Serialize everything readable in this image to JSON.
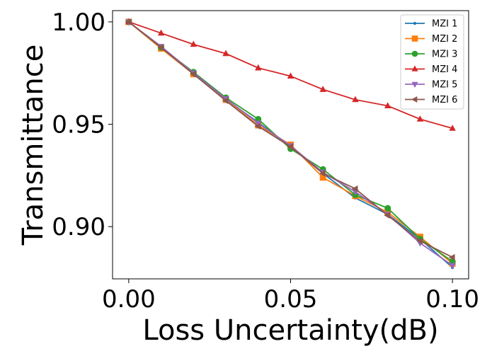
{
  "chart_data": {
    "type": "line",
    "xlabel": "Loss Uncertainty(dB)",
    "ylabel": "Transmittance",
    "xlim": [
      -0.005,
      0.105
    ],
    "ylim": [
      0.8745,
      1.0055
    ],
    "x_ticks": [
      0.0,
      0.05,
      0.1
    ],
    "x_tick_labels": [
      "0.00",
      "0.05",
      "0.10"
    ],
    "y_ticks": [
      0.9,
      0.95,
      1.0
    ],
    "y_tick_labels": [
      "0.90",
      "0.95",
      "1.00"
    ],
    "grid": false,
    "legend_position": "top-right",
    "x": [
      0.0,
      0.01,
      0.02,
      0.03,
      0.04,
      0.05,
      0.06,
      0.07,
      0.08,
      0.09,
      0.1
    ],
    "series": [
      {
        "name": "MZI 1",
        "color": "#1f77b4",
        "marker": "point",
        "values": [
          1.0,
          0.9875,
          0.9745,
          0.962,
          0.951,
          0.939,
          0.926,
          0.914,
          0.906,
          0.894,
          0.88
        ]
      },
      {
        "name": "MZI 2",
        "color": "#ff7f0e",
        "marker": "square",
        "values": [
          1.0,
          0.987,
          0.9745,
          0.962,
          0.9495,
          0.94,
          0.924,
          0.915,
          0.907,
          0.895,
          0.882
        ]
      },
      {
        "name": "MZI 3",
        "color": "#2ca02c",
        "marker": "circle",
        "values": [
          1.0,
          0.9875,
          0.9755,
          0.963,
          0.9525,
          0.938,
          0.928,
          0.9155,
          0.909,
          0.894,
          0.883
        ]
      },
      {
        "name": "MZI 4",
        "color": "#d62728",
        "marker": "triangle-up",
        "values": [
          1.0,
          0.9945,
          0.989,
          0.9845,
          0.9775,
          0.9735,
          0.967,
          0.962,
          0.959,
          0.9525,
          0.948
        ]
      },
      {
        "name": "MZI 5",
        "color": "#9467bd",
        "marker": "triangle-down",
        "values": [
          1.0,
          0.988,
          0.975,
          0.9625,
          0.9505,
          0.9395,
          0.9265,
          0.917,
          0.906,
          0.892,
          0.881
        ]
      },
      {
        "name": "MZI 6",
        "color": "#8c564b",
        "marker": "triangle-left",
        "values": [
          1.0,
          0.9875,
          0.9745,
          0.9615,
          0.949,
          0.939,
          0.926,
          0.9185,
          0.9055,
          0.893,
          0.885
        ]
      }
    ]
  }
}
